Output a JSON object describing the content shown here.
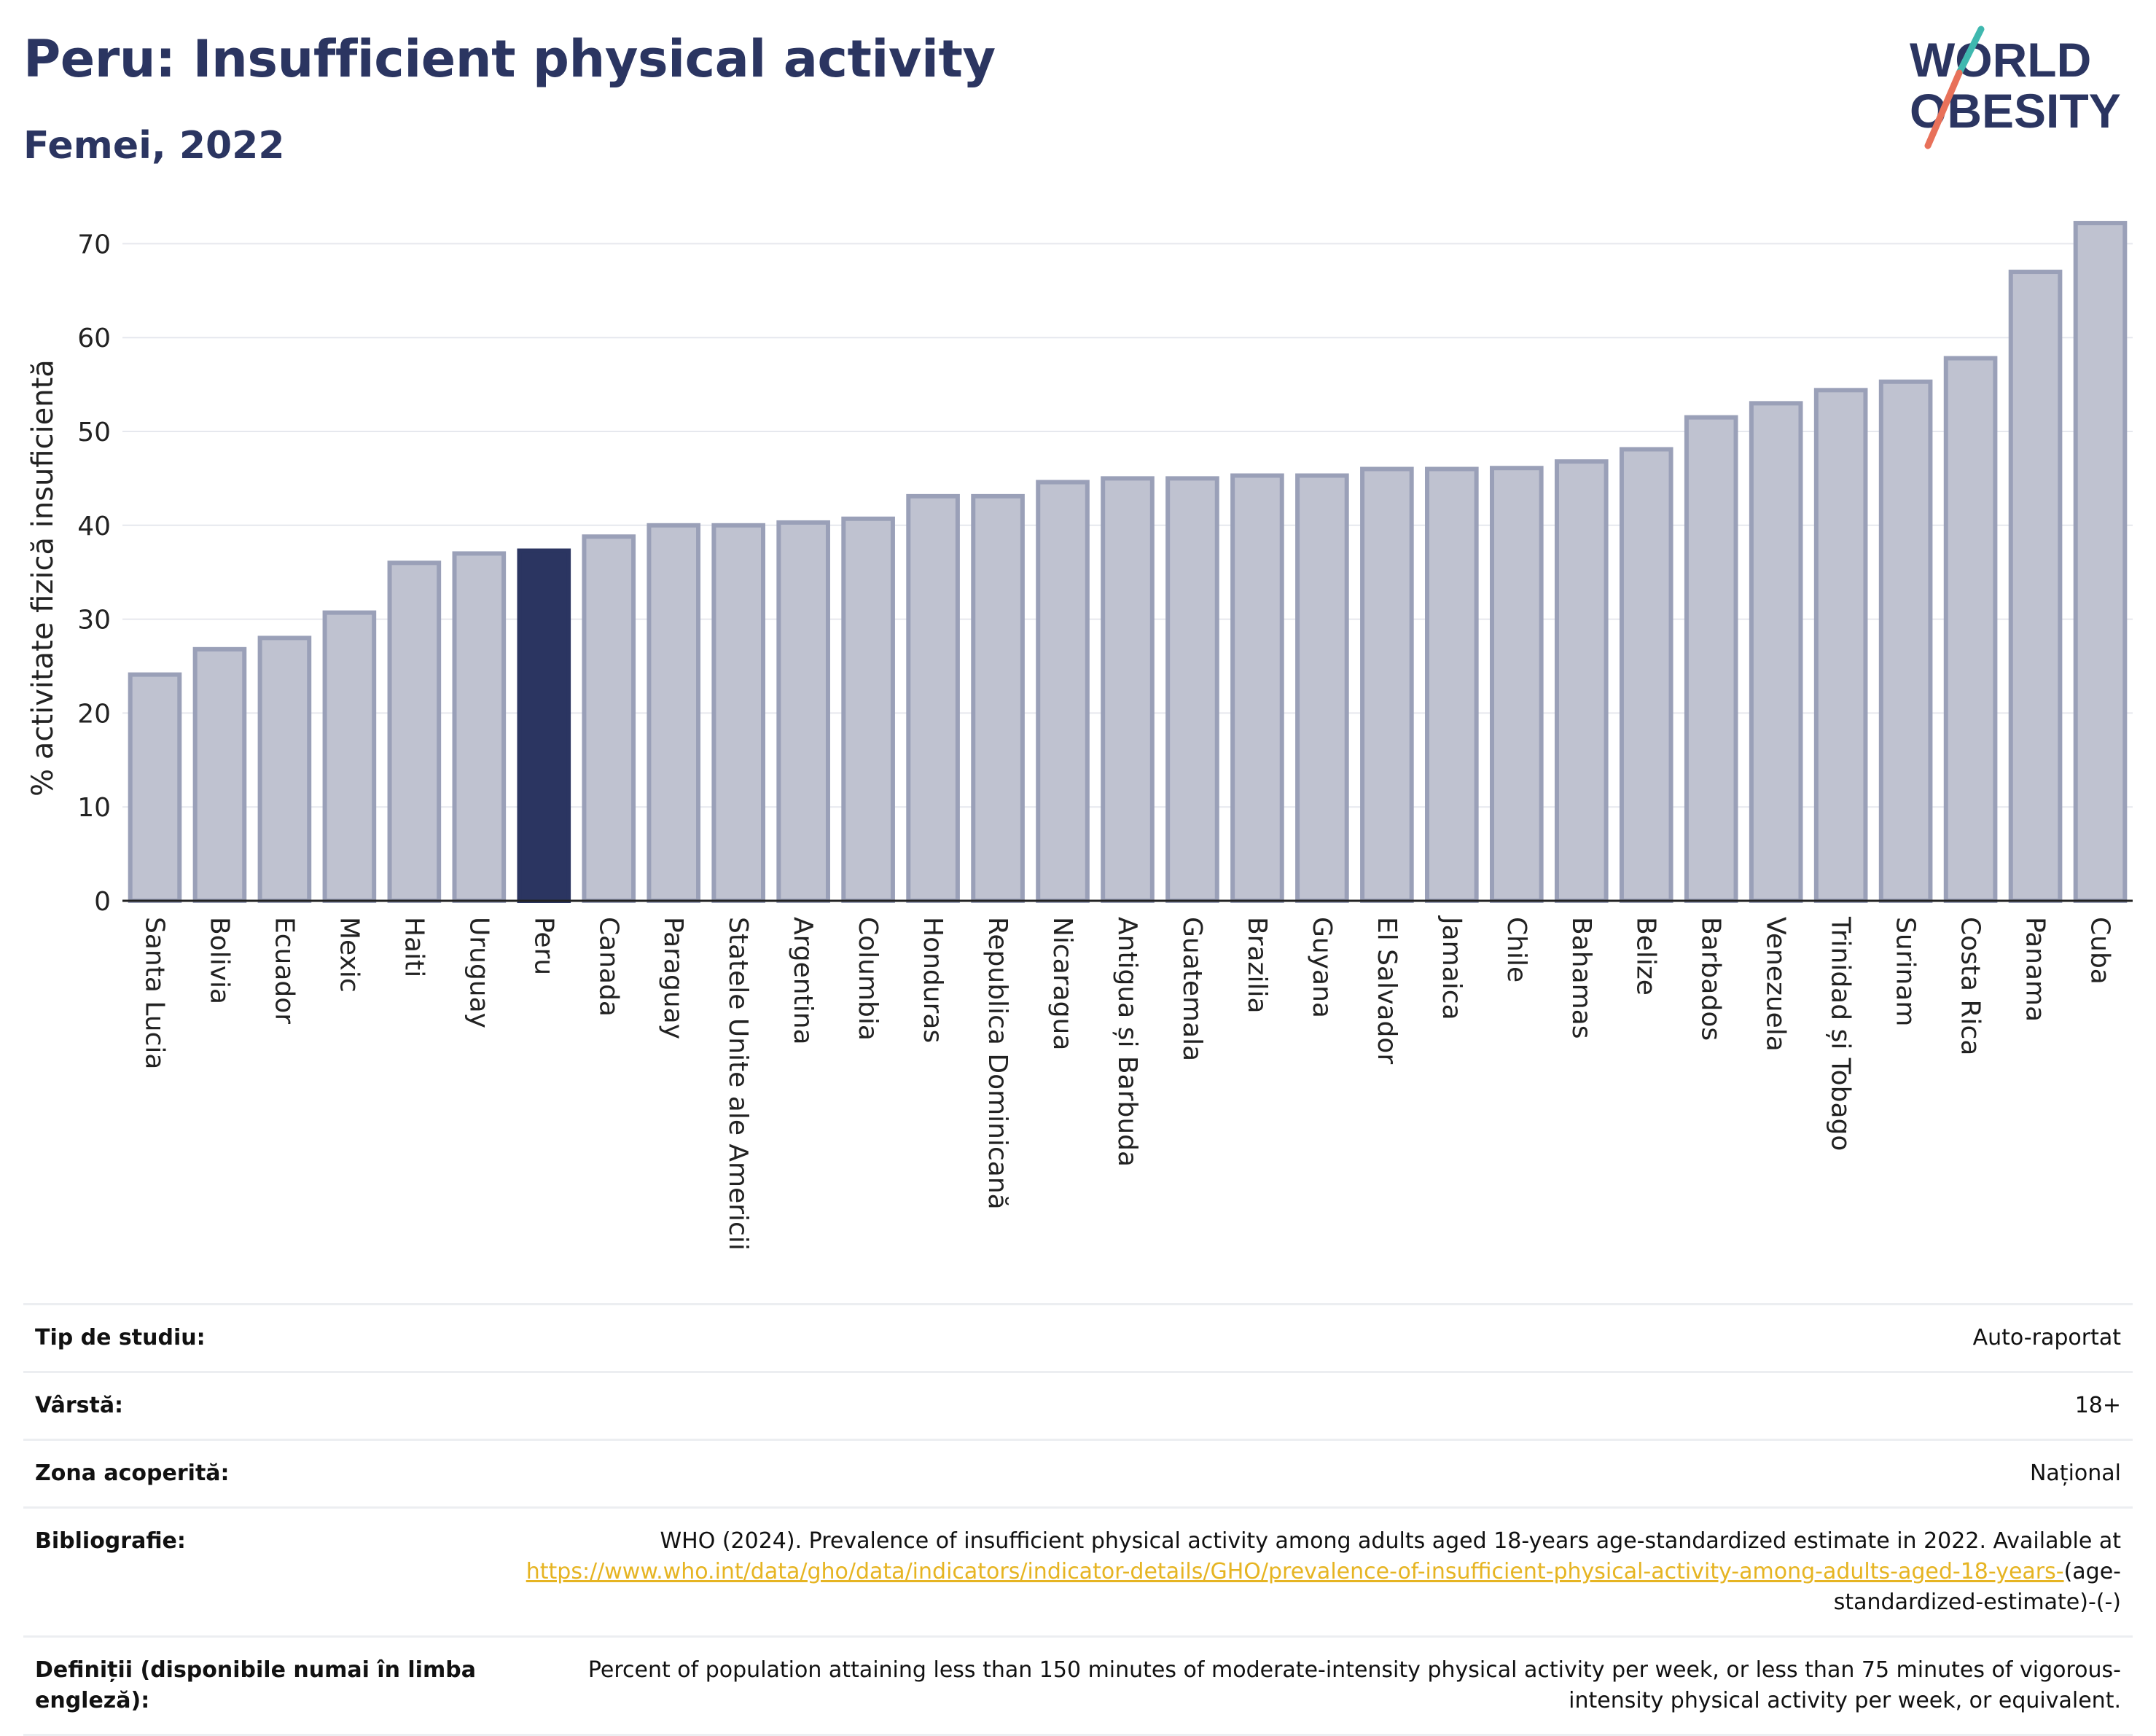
{
  "header": {
    "title": "Peru: Insufficient physical activity",
    "subtitle": "Femei, 2022"
  },
  "logo": {
    "line1": "WORLD",
    "line2": "OBESITY",
    "accent_teal": "#3fb8af",
    "accent_red": "#e8715a"
  },
  "colors": {
    "bar_default": "#bfc2d0",
    "bar_default_stroke": "#9aa0b8",
    "bar_highlight": "#2b3561",
    "text": "#2b3561",
    "grid": "#e6e8ee"
  },
  "chart_data": {
    "type": "bar",
    "ylabel": "% activitate fizică insuficientă",
    "ylim": [
      0,
      75
    ],
    "yticks": [
      0,
      10,
      20,
      30,
      40,
      50,
      60,
      70
    ],
    "grid": true,
    "highlight": "Peru",
    "categories": [
      "Santa Lucia",
      "Bolivia",
      "Ecuador",
      "Mexic",
      "Haiti",
      "Uruguay",
      "Peru",
      "Canada",
      "Paraguay",
      "Statele Unite ale Americii",
      "Argentina",
      "Columbia",
      "Honduras",
      "Republica Dominicană",
      "Nicaragua",
      "Antigua și Barbuda",
      "Guatemala",
      "Brazilia",
      "Guyana",
      "El Salvador",
      "Jamaica",
      "Chile",
      "Bahamas",
      "Belize",
      "Barbados",
      "Venezuela",
      "Trinidad și Tobago",
      "Surinam",
      "Costa Rica",
      "Panama",
      "Cuba"
    ],
    "values": [
      24.1,
      26.8,
      28.0,
      30.7,
      36.0,
      37.0,
      37.3,
      38.8,
      40.0,
      40.0,
      40.3,
      40.7,
      43.1,
      43.1,
      44.6,
      45.0,
      45.0,
      45.3,
      45.3,
      46.0,
      46.0,
      46.1,
      46.8,
      48.1,
      51.5,
      53.0,
      54.4,
      55.3,
      57.8,
      67.0,
      72.2
    ]
  },
  "info": {
    "rows": [
      {
        "label": "Tip de studiu:",
        "value": "Auto-raportat"
      },
      {
        "label": "Vârstă:",
        "value": "18+"
      },
      {
        "label": "Zona acoperită:",
        "value": "Național"
      }
    ],
    "bibliography": {
      "label": "Bibliografie:",
      "text": "WHO (2024). Prevalence of insufficient physical activity among adults aged 18-years age-standardized estimate in 2022. Available at",
      "link": "https://www.who.int/data/gho/data/indicators/indicator-details/GHO/prevalence-of-insufficient-physical-activity-among-adults-aged-18-years-",
      "suffix": "(age-standardized-estimate)-(-)"
    },
    "definitions": {
      "label": "Definiții (disponibile numai în limba engleză):",
      "value": "Percent of population attaining less than 150 minutes of moderate-intensity physical activity per week, or less than 75 minutes of vigorous-intensity physical activity per week, or equivalent."
    }
  }
}
